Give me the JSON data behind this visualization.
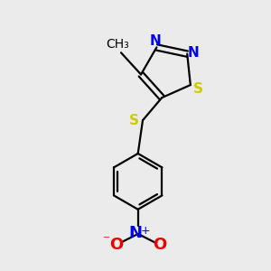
{
  "bg_color": "#ebebeb",
  "atom_colors": {
    "C": "#000000",
    "N": "#0000ee",
    "S": "#cccc00",
    "O": "#ee0000",
    "bond": "#000000"
  },
  "bond_width": 1.6,
  "dbo": 0.12,
  "font_size_atom": 11,
  "font_size_charge": 8
}
